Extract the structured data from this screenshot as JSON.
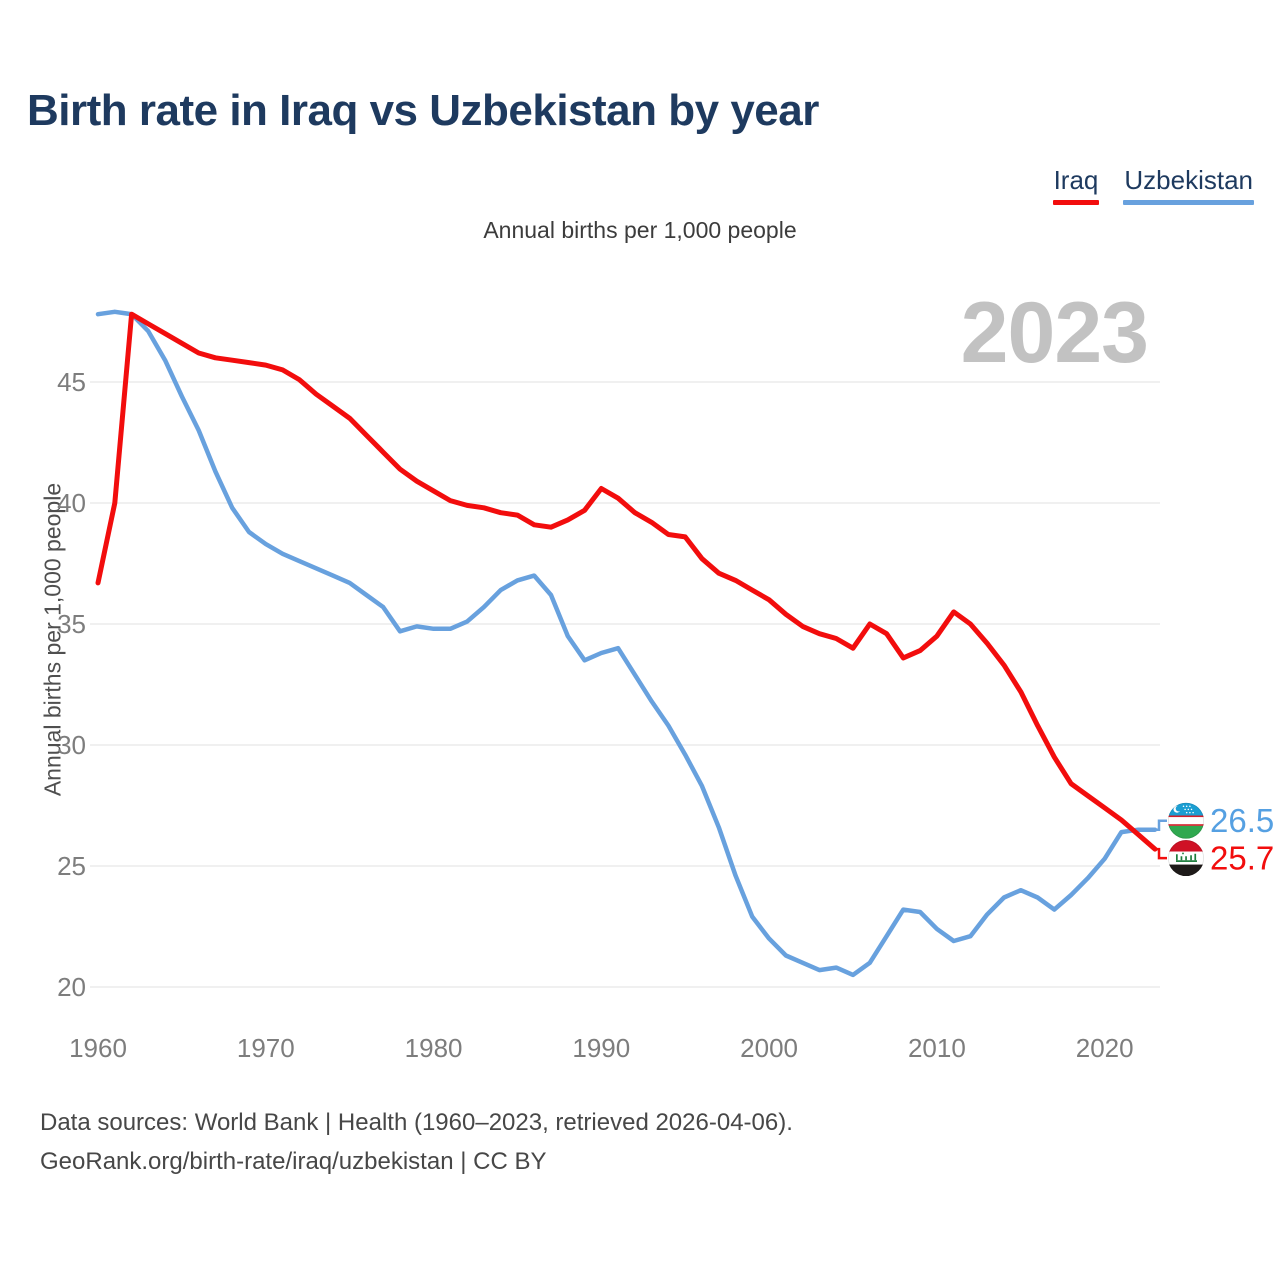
{
  "title": "Birth rate in Iraq vs Uzbekistan by year",
  "subtitle": "Annual births per 1,000 people",
  "watermark": "2023",
  "legend": [
    {
      "label": "Iraq",
      "color": "#f20d0d"
    },
    {
      "label": "Uzbekistan",
      "color": "#68a1de"
    }
  ],
  "end_labels": [
    {
      "series": "Uzbekistan",
      "value": "26.5",
      "color": "#55a0e2",
      "flag": "uzbekistan-flag"
    },
    {
      "series": "Iraq",
      "value": "25.7",
      "color": "#f20d0d",
      "flag": "iraq-flag"
    }
  ],
  "footer": {
    "line1": "Data sources: World Bank | Health (1960–2023, retrieved 2026-04-06).",
    "line2": "GeoRank.org/birth-rate/iraq/uzbekistan | CC BY"
  },
  "chart_data": {
    "type": "line",
    "title": "Birth rate in Iraq vs Uzbekistan by year",
    "xlabel": "",
    "ylabel": "Annual births per 1,000 people",
    "xlim": [
      1960,
      2023
    ],
    "ylim": [
      18.5,
      48.5
    ],
    "grid": "horizontal",
    "legend_position": "top-right",
    "x_ticks": [
      1960,
      1970,
      1980,
      1990,
      2000,
      2010,
      2020
    ],
    "y_ticks": [
      20,
      25,
      30,
      35,
      40,
      45
    ],
    "x": [
      1960,
      1961,
      1962,
      1963,
      1964,
      1965,
      1966,
      1967,
      1968,
      1969,
      1970,
      1971,
      1972,
      1973,
      1974,
      1975,
      1976,
      1977,
      1978,
      1979,
      1980,
      1981,
      1982,
      1983,
      1984,
      1985,
      1986,
      1987,
      1988,
      1989,
      1990,
      1991,
      1992,
      1993,
      1994,
      1995,
      1996,
      1997,
      1998,
      1999,
      2000,
      2001,
      2002,
      2003,
      2004,
      2005,
      2006,
      2007,
      2008,
      2009,
      2010,
      2011,
      2012,
      2013,
      2014,
      2015,
      2016,
      2017,
      2018,
      2019,
      2020,
      2021,
      2022,
      2023
    ],
    "series": [
      {
        "name": "Iraq",
        "color": "#f20d0d",
        "values": [
          36.7,
          40.0,
          47.8,
          47.4,
          47.0,
          46.6,
          46.2,
          46.0,
          45.9,
          45.8,
          45.7,
          45.5,
          45.1,
          44.5,
          44.0,
          43.5,
          42.8,
          42.1,
          41.4,
          40.9,
          40.5,
          40.1,
          39.9,
          39.8,
          39.6,
          39.5,
          39.1,
          39.0,
          39.3,
          39.7,
          40.6,
          40.2,
          39.6,
          39.2,
          38.7,
          38.6,
          37.7,
          37.1,
          36.8,
          36.4,
          36.0,
          35.4,
          34.9,
          34.6,
          34.4,
          34.0,
          35.0,
          34.6,
          33.6,
          33.9,
          34.5,
          35.5,
          35.0,
          34.2,
          33.3,
          32.2,
          30.8,
          29.5,
          28.4,
          27.9,
          27.4,
          26.9,
          26.3,
          25.7
        ]
      },
      {
        "name": "Uzbekistan",
        "color": "#68a1de",
        "values": [
          47.8,
          47.9,
          47.8,
          47.1,
          45.9,
          44.4,
          43.0,
          41.3,
          39.8,
          38.8,
          38.3,
          37.9,
          37.6,
          37.3,
          37.0,
          36.7,
          36.2,
          35.7,
          34.7,
          34.9,
          34.8,
          34.8,
          35.1,
          35.7,
          36.4,
          36.8,
          37.0,
          36.2,
          34.5,
          33.5,
          33.8,
          34.0,
          32.9,
          31.8,
          30.8,
          29.6,
          28.3,
          26.6,
          24.6,
          22.9,
          22.0,
          21.3,
          21.0,
          20.7,
          20.8,
          20.5,
          21.0,
          22.1,
          23.2,
          23.1,
          22.4,
          21.9,
          22.1,
          23.0,
          23.7,
          24.0,
          23.7,
          23.2,
          23.8,
          24.5,
          25.3,
          26.4,
          26.5,
          26.5
        ]
      }
    ]
  }
}
